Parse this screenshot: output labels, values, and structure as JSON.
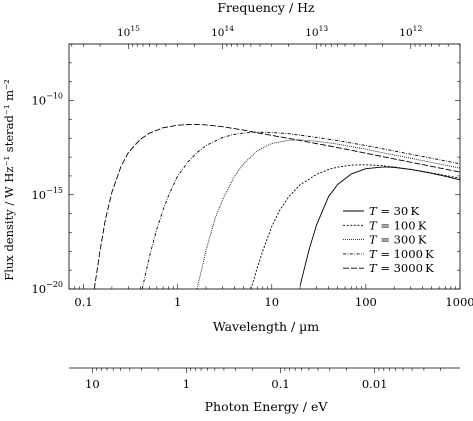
{
  "chart_data": {
    "type": "line",
    "x_scale": "log",
    "y_scale": "log",
    "xlabel": "Wavelength / µm",
    "ylabel": "Flux density / W Hz⁻¹ sterad⁻¹ m⁻²",
    "top_axis_label": "Frequency / Hz",
    "energy_axis_label": "Photon Energy / eV",
    "xlim": [
      0.07,
      1000
    ],
    "ylim": [
      1e-20,
      1e-07
    ],
    "x_ticks": [
      {
        "value": 0.1,
        "label": "0.1"
      },
      {
        "value": 1,
        "label": "1"
      },
      {
        "value": 10,
        "label": "10"
      },
      {
        "value": 100,
        "label": "100"
      },
      {
        "value": 1000,
        "label": "1000"
      }
    ],
    "y_ticks": [
      {
        "value": 1e-10,
        "base": "10",
        "exp": "−10"
      },
      {
        "value": 1e-15,
        "base": "10",
        "exp": "−15"
      },
      {
        "value": 1e-20,
        "base": "10",
        "exp": "−20"
      }
    ],
    "top_ticks": [
      {
        "wavelength_um": 0.29979,
        "base": "10",
        "exp": "15"
      },
      {
        "wavelength_um": 2.9979,
        "base": "10",
        "exp": "14"
      },
      {
        "wavelength_um": 29.979,
        "base": "10",
        "exp": "13"
      },
      {
        "wavelength_um": 299.79,
        "base": "10",
        "exp": "12"
      }
    ],
    "energy_ticks": [
      {
        "wavelength_um": 0.12398,
        "label": "10"
      },
      {
        "wavelength_um": 1.2398,
        "label": "1"
      },
      {
        "wavelength_um": 12.398,
        "label": "0.1"
      },
      {
        "wavelength_um": 123.98,
        "label": "0.01"
      }
    ],
    "legend_position": "lower-right",
    "series": [
      {
        "name": "T = 30 K",
        "T_label": "T",
        "eq": " = 30 K",
        "temperature_K": 30,
        "dash": "",
        "x": [
          20,
          25,
          30,
          40,
          50,
          70,
          100,
          150,
          170,
          200,
          300,
          500,
          700,
          1000
        ],
        "y": [
          1.5e-20,
          1.33e-18,
          2.6e-17,
          7.8e-16,
          3.5e-15,
          1.27e-14,
          2.43e-14,
          2.96e-14,
          2.96e-14,
          2.84e-14,
          2.21e-14,
          1.38e-14,
          9.6e-15,
          6.2e-15
        ]
      },
      {
        "name": "T = 100 K",
        "T_label": "T",
        "eq": " = 100 K",
        "temperature_K": 100,
        "dash": "2,1.6",
        "x": [
          6,
          7,
          8,
          10,
          12,
          15,
          20,
          30,
          40,
          50,
          70,
          100,
          150,
          200,
          300,
          500,
          700,
          1000
        ],
        "y": [
          8e-21,
          1.29e-19,
          1.03e-18,
          2.09e-17,
          1.36e-16,
          7.3e-16,
          3.4e-15,
          1.22e-14,
          2.19e-14,
          2.92e-14,
          3.74e-14,
          3.9e-14,
          3.48e-14,
          2.96e-14,
          2.22e-14,
          1.44e-14,
          1.06e-14,
          7.5e-15
        ]
      },
      {
        "name": "T = 300 K",
        "T_label": "T",
        "eq": " = 300 K",
        "temperature_K": 300,
        "dash": "0.9,1.1",
        "x": [
          1.6,
          1.8,
          2,
          2.5,
          3,
          4,
          5,
          7,
          10,
          15,
          20,
          30,
          50,
          70,
          100,
          150,
          200,
          300,
          500,
          700,
          1000
        ],
        "y": [
          5.6e-21,
          1.1e-19,
          1.15e-18,
          5.5e-17,
          5.4e-16,
          9.4e-15,
          4.3e-14,
          2.15e-13,
          5.3e-13,
          7.8e-13,
          8.1e-13,
          6.9e-13,
          4.9e-13,
          3.6e-13,
          2.6e-13,
          1.7e-13,
          1.3e-13,
          8.7e-14,
          5.2e-14,
          3.7e-14,
          2.6e-14
        ]
      },
      {
        "name": "T = 1000 K",
        "T_label": "T",
        "eq": " = 1000 K",
        "temperature_K": 1000,
        "dash": "3,1.5,0.8,1.5",
        "x": [
          0.42,
          0.45,
          0.5,
          0.6,
          0.7,
          0.8,
          1,
          1.3,
          1.6,
          2,
          3,
          4,
          5,
          7,
          10,
          15,
          20,
          30,
          50,
          100,
          200,
          500,
          1000
        ],
        "y": [
          8e-21,
          4.8e-20,
          5.1e-19,
          1.54e-17,
          1.58e-16,
          9.2e-16,
          1e-14,
          5.8e-14,
          1.71e-13,
          4.1e-13,
          1.1e-12,
          1.6e-12,
          1.9e-12,
          2.1e-12,
          2e-12,
          1.75e-12,
          1.45e-12,
          1.1e-12,
          7.5e-13,
          4.1e-13,
          2.1e-13,
          8.7e-14,
          4.4e-14
        ]
      },
      {
        "name": "T = 3000 K",
        "T_label": "T",
        "eq": " = 3000 K",
        "temperature_K": 3000,
        "dash": "6,2",
        "x": [
          0.13,
          0.15,
          0.17,
          0.2,
          0.25,
          0.3,
          0.4,
          0.5,
          0.7,
          1,
          1.3,
          1.6,
          2,
          3,
          5,
          7,
          10,
          20,
          50,
          100,
          200,
          500,
          1000
        ],
        "y": [
          8e-21,
          1.19e-18,
          4.5e-17,
          1.37e-15,
          3.2e-14,
          1.79e-13,
          8.7e-13,
          1.85e-12,
          3.6e-12,
          4.9e-12,
          5.4e-12,
          5.4e-12,
          5.1e-12,
          4.1e-12,
          2.7e-12,
          1.95e-12,
          1.42e-12,
          7.6e-13,
          3.2e-13,
          1.6e-13,
          8e-14,
          3.2e-14,
          1.6e-14
        ]
      }
    ]
  }
}
